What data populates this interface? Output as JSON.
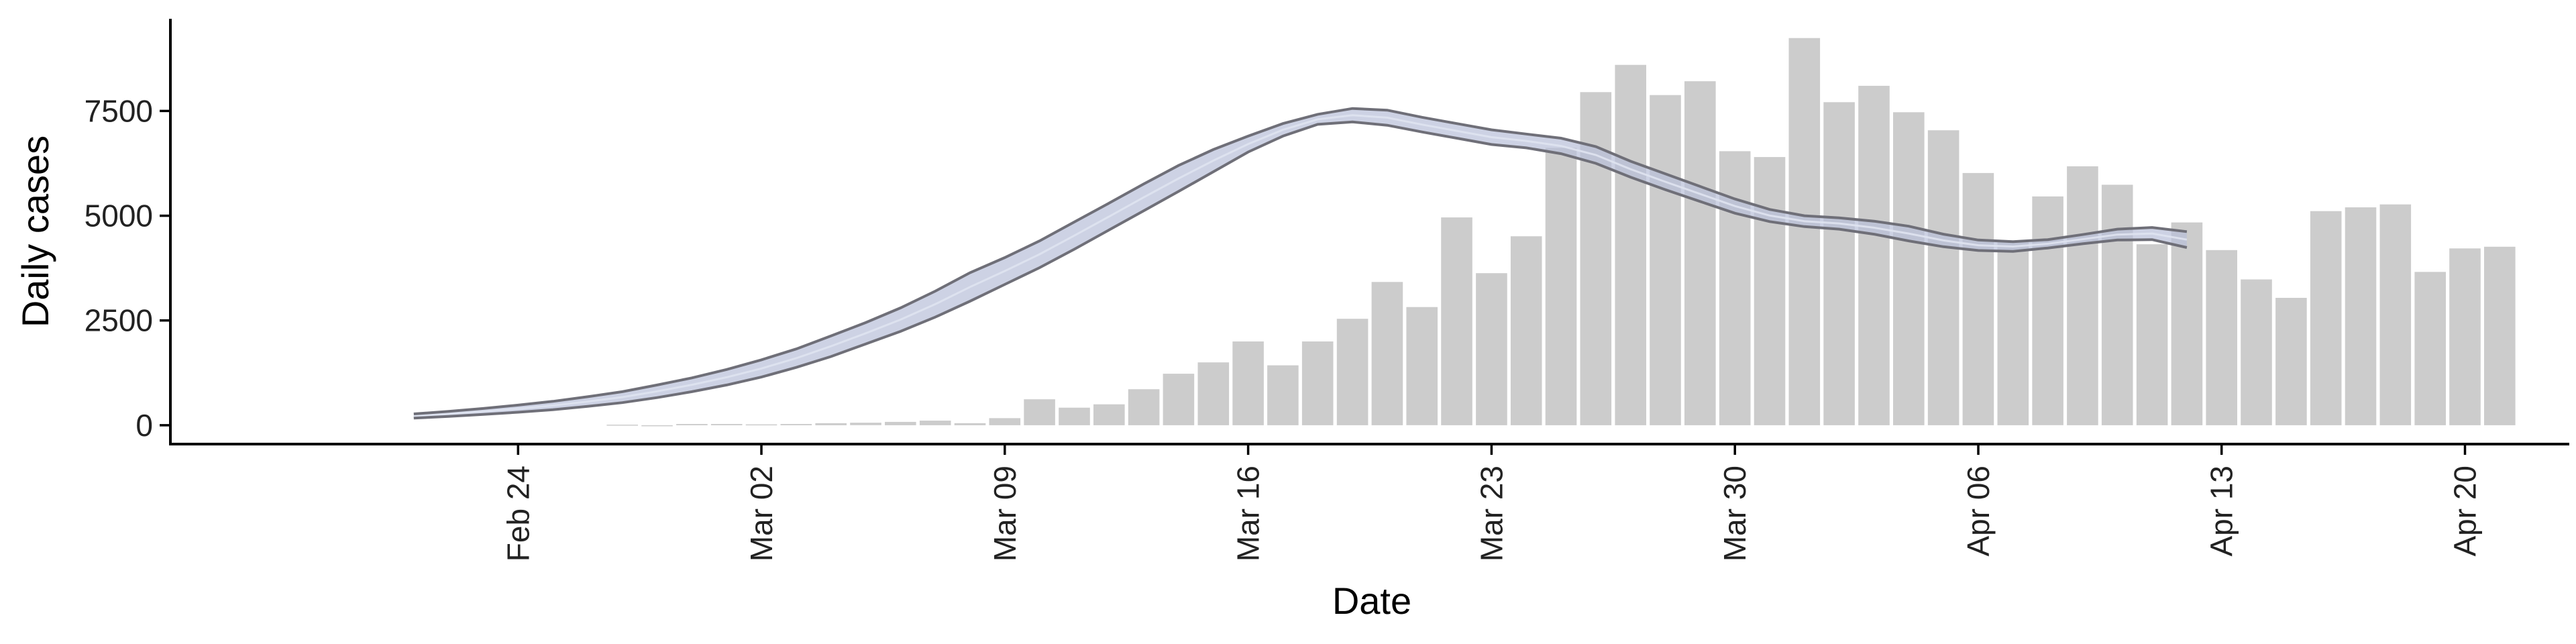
{
  "chart_data": {
    "type": "bar",
    "title": "",
    "xlabel": "Date",
    "ylabel": "Daily cases",
    "ylim": [
      -450,
      9700
    ],
    "yticks": [
      0,
      2500,
      5000,
      7500
    ],
    "ytick_labels": [
      "0",
      "2500",
      "5000",
      "7500"
    ],
    "x_range": [
      "2020-02-14",
      "2020-04-23"
    ],
    "xticks": [
      "2020-02-24",
      "2020-03-02",
      "2020-03-09",
      "2020-03-16",
      "2020-03-23",
      "2020-03-30",
      "2020-04-06",
      "2020-04-13",
      "2020-04-20"
    ],
    "xtick_labels": [
      "Feb 24",
      "Mar 02",
      "Mar 09",
      "Mar 16",
      "Mar 23",
      "Mar 30",
      "Apr 06",
      "Apr 13",
      "Apr 20"
    ],
    "grid": false,
    "legend": "none",
    "colors": {
      "bars": "#cccccc",
      "band_fill": "#b8bfd8",
      "band_edge": "#6f6f78",
      "axis": "#000000"
    },
    "bars": {
      "dates": [
        "2020-02-27",
        "2020-02-28",
        "2020-02-29",
        "2020-03-01",
        "2020-03-02",
        "2020-03-03",
        "2020-03-04",
        "2020-03-05",
        "2020-03-06",
        "2020-03-07",
        "2020-03-08",
        "2020-03-09",
        "2020-03-10",
        "2020-03-11",
        "2020-03-12",
        "2020-03-13",
        "2020-03-14",
        "2020-03-15",
        "2020-03-16",
        "2020-03-17",
        "2020-03-18",
        "2020-03-19",
        "2020-03-20",
        "2020-03-21",
        "2020-03-22",
        "2020-03-23",
        "2020-03-24",
        "2020-03-25",
        "2020-03-26",
        "2020-03-27",
        "2020-03-28",
        "2020-03-29",
        "2020-03-30",
        "2020-03-31",
        "2020-04-01",
        "2020-04-02",
        "2020-04-03",
        "2020-04-04",
        "2020-04-05",
        "2020-04-06",
        "2020-04-07",
        "2020-04-08",
        "2020-04-09",
        "2020-04-10",
        "2020-04-11",
        "2020-04-12",
        "2020-04-13",
        "2020-04-14",
        "2020-04-15",
        "2020-04-16",
        "2020-04-17",
        "2020-04-18",
        "2020-04-19",
        "2020-04-20",
        "2020-04-21"
      ],
      "values": [
        14,
        0,
        30,
        30,
        20,
        30,
        50,
        60,
        80,
        110,
        50,
        170,
        620,
        420,
        500,
        860,
        1230,
        1500,
        2000,
        1430,
        2000,
        2540,
        3420,
        2820,
        4960,
        3630,
        4510,
        6620,
        7950,
        8600,
        7880,
        8210,
        6540,
        6400,
        9240,
        7710,
        8100,
        7470,
        7040,
        6020,
        4370,
        5460,
        6180,
        5740,
        4320,
        4840,
        4180,
        3480,
        3040,
        5110,
        5200,
        5270,
        3660,
        4220,
        4260
      ]
    },
    "band": {
      "dates": [
        "2020-02-21",
        "2020-02-22",
        "2020-02-23",
        "2020-02-24",
        "2020-02-25",
        "2020-02-26",
        "2020-02-27",
        "2020-02-28",
        "2020-02-29",
        "2020-03-01",
        "2020-03-02",
        "2020-03-03",
        "2020-03-04",
        "2020-03-05",
        "2020-03-06",
        "2020-03-07",
        "2020-03-08",
        "2020-03-09",
        "2020-03-10",
        "2020-03-11",
        "2020-03-12",
        "2020-03-13",
        "2020-03-14",
        "2020-03-15",
        "2020-03-16",
        "2020-03-17",
        "2020-03-18",
        "2020-03-19",
        "2020-03-20",
        "2020-03-21",
        "2020-03-22",
        "2020-03-23",
        "2020-03-24",
        "2020-03-25",
        "2020-03-26",
        "2020-03-27",
        "2020-03-28",
        "2020-03-29",
        "2020-03-30",
        "2020-03-31",
        "2020-04-01",
        "2020-04-02",
        "2020-04-03",
        "2020-04-04",
        "2020-04-05",
        "2020-04-06",
        "2020-04-07",
        "2020-04-08",
        "2020-04-09",
        "2020-04-10",
        "2020-04-11",
        "2020-04-12"
      ],
      "upper": [
        270,
        330,
        400,
        480,
        570,
        680,
        800,
        960,
        1130,
        1330,
        1560,
        1820,
        2130,
        2450,
        2800,
        3200,
        3640,
        4000,
        4400,
        4850,
        5300,
        5760,
        6200,
        6580,
        6900,
        7200,
        7420,
        7560,
        7520,
        7350,
        7200,
        7050,
        6950,
        6850,
        6650,
        6300,
        6000,
        5700,
        5400,
        5150,
        5000,
        4950,
        4870,
        4750,
        4560,
        4420,
        4380,
        4430,
        4550,
        4680,
        4720,
        4620
      ],
      "lower": [
        170,
        210,
        260,
        310,
        370,
        450,
        540,
        660,
        800,
        960,
        1150,
        1380,
        1640,
        1940,
        2240,
        2580,
        2960,
        3360,
        3760,
        4200,
        4660,
        5120,
        5580,
        6050,
        6520,
        6900,
        7180,
        7240,
        7160,
        7000,
        6850,
        6700,
        6620,
        6480,
        6250,
        5920,
        5620,
        5340,
        5060,
        4860,
        4740,
        4680,
        4560,
        4400,
        4260,
        4170,
        4150,
        4230,
        4330,
        4420,
        4430,
        4240
      ]
    }
  }
}
